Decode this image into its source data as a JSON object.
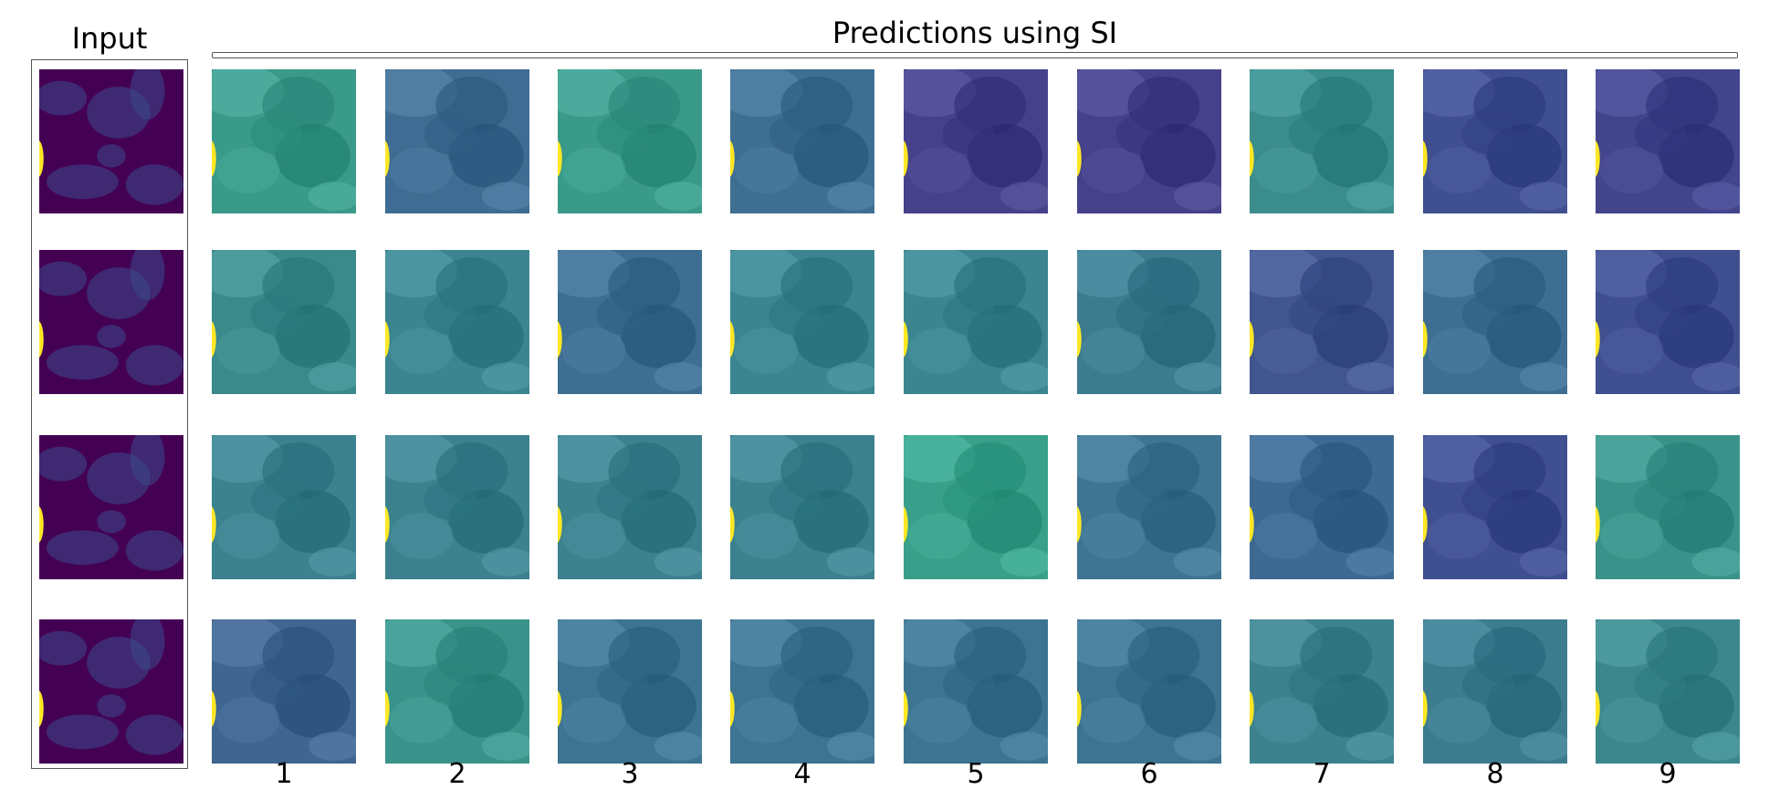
{
  "figure": {
    "input_title": "Input",
    "predictions_title": "Predictions using SI",
    "column_labels": [
      "1",
      "2",
      "3",
      "4",
      "5",
      "6",
      "7",
      "8",
      "9"
    ],
    "colormap": "viridis",
    "input_color": "#440154",
    "edge_highlight_color": "#fde725",
    "rows": 4,
    "prediction_tint": [
      [
        "#3a9a8a",
        "#3f6c92",
        "#3a9a8a",
        "#3e6f92",
        "#45418a",
        "#45418a",
        "#3b8d8c",
        "#404f90",
        "#42458c"
      ],
      [
        "#3a8a8c",
        "#3b8490",
        "#3e6f92",
        "#3b8490",
        "#3b8490",
        "#3d7c8f",
        "#41558f",
        "#3e6f92",
        "#404f90"
      ],
      [
        "#3b818e",
        "#3b818e",
        "#3b818e",
        "#3b818e",
        "#38a08a",
        "#3e7592",
        "#3d6a92",
        "#404f90",
        "#3a938b"
      ],
      [
        "#3f6590",
        "#3a938b",
        "#3c7491",
        "#3c7491",
        "#3c7491",
        "#3c7491",
        "#3c818e",
        "#3d7c8f",
        "#3b878d"
      ]
    ]
  }
}
